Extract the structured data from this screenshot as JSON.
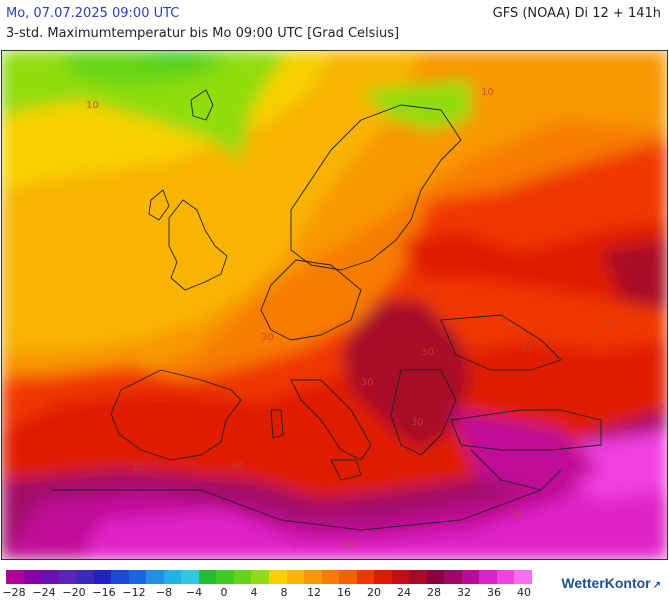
{
  "header": {
    "date_label": "Mo, 07.07.2025 09:00 UTC",
    "model_label": "GFS (NOAA) Di 12 + 141h",
    "subtitle": "3-std. Maximumtemperatur bis Mo 09:00 UTC [Grad Celsius]"
  },
  "map": {
    "isotherm_labels": [
      "10",
      "10",
      "30",
      "30",
      "30",
      "30",
      "30",
      "30",
      "30",
      "30",
      "30",
      "30",
      "30"
    ]
  },
  "legend": {
    "colors": [
      "#b0009a",
      "#8a00a8",
      "#6a0fb0",
      "#5a24b8",
      "#3a28b8",
      "#2020c8",
      "#1c48d8",
      "#1c64e0",
      "#2090e4",
      "#24b0e8",
      "#30c8e0",
      "#20c030",
      "#40cc20",
      "#64d418",
      "#90dc10",
      "#f8d000",
      "#f8b400",
      "#f89800",
      "#f87c00",
      "#f86000",
      "#f03800",
      "#e01a00",
      "#c80a14",
      "#a80a28",
      "#880040",
      "#a00868",
      "#c00898",
      "#e020c8",
      "#f040e0",
      "#f870f0"
    ],
    "tick_labels": [
      "−28",
      "−24",
      "−20",
      "−16",
      "−12",
      "−8",
      "−4",
      "0",
      "4",
      "8",
      "12",
      "16",
      "20",
      "24",
      "28",
      "32",
      "36",
      "40"
    ]
  },
  "brand": {
    "name": "WetterKontor",
    "mark": "↗"
  }
}
